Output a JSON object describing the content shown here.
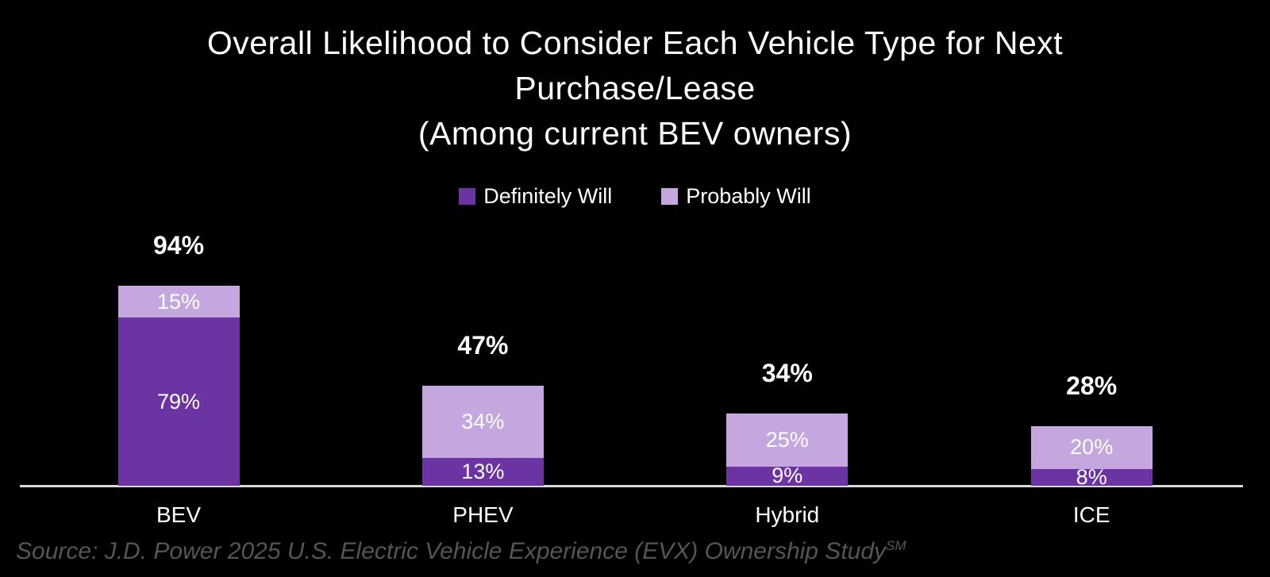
{
  "title": {
    "lines": [
      "Overall Likelihood to Consider Each Vehicle Type for Next",
      "Purchase/Lease",
      "(Among current BEV owners)"
    ]
  },
  "legend": {
    "items": [
      {
        "label": "Definitely Will",
        "color": "#6b34a2"
      },
      {
        "label": "Probably Will",
        "color": "#c5a7e0"
      }
    ]
  },
  "source": {
    "text": "Source: J.D. Power 2025 U.S. Electric Vehicle Experience (EVX) Ownership Study",
    "superscript": "SM"
  },
  "colors": {
    "background": "#000000",
    "axis_line": "#d9d9d9",
    "definitely_will": "#6b34a2",
    "probably_will": "#c5a7e0",
    "text": "#ffffff",
    "source_text": "#555555"
  },
  "chart_data": {
    "type": "bar",
    "stacked": true,
    "categories": [
      "BEV",
      "PHEV",
      "Hybrid",
      "ICE"
    ],
    "series": [
      {
        "name": "Definitely Will",
        "color": "#6b34a2",
        "values": [
          79,
          13,
          9,
          8
        ],
        "labels": [
          "79%",
          "13%",
          "9%",
          "8%"
        ]
      },
      {
        "name": "Probably Will",
        "color": "#c5a7e0",
        "values": [
          15,
          34,
          25,
          20
        ],
        "labels": [
          "15%",
          "34%",
          "25%",
          "20%"
        ]
      }
    ],
    "totals": [
      94,
      47,
      34,
      28
    ],
    "total_labels": [
      "94%",
      "47%",
      "34%",
      "28%"
    ],
    "title": "Overall Likelihood to Consider Each Vehicle Type for Next Purchase/Lease (Among current BEV owners)",
    "xlabel": "",
    "ylabel": "",
    "ylim": [
      0,
      100
    ],
    "grid": false,
    "legend_position": "top",
    "value_label_format": "percent"
  }
}
